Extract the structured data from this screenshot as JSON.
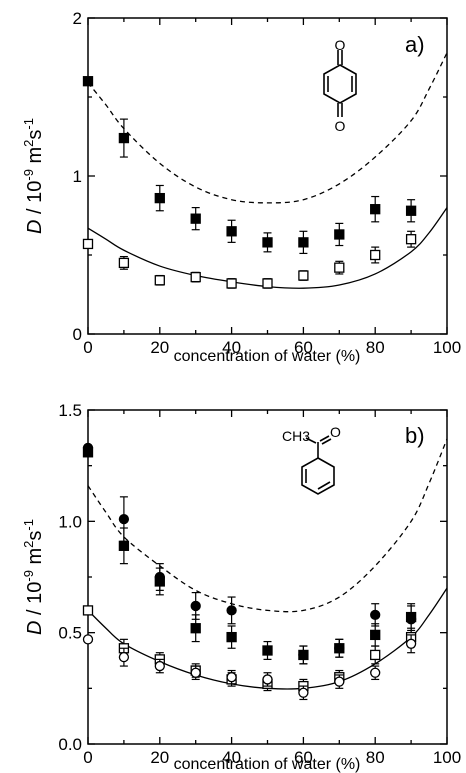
{
  "chart_data": [
    {
      "type": "scatter",
      "panel_label": "a)",
      "molecule_labels": [
        "O",
        "O"
      ],
      "xlabel": "concentration of water (%)",
      "ylabel": "D / 10-9 m2s-1",
      "ylabel_parts": {
        "d": "D",
        "mid": " / 10",
        "exp1": "-9",
        "unit": " m",
        "exp2": "2",
        "unit2": "s",
        "exp3": "-1"
      },
      "xlim": [
        0,
        100
      ],
      "ylim": [
        0,
        2
      ],
      "xticks": [
        0,
        20,
        40,
        60,
        80,
        100
      ],
      "yticks": [
        0,
        1,
        2
      ],
      "yticklabels": [
        "0",
        "1",
        "2"
      ],
      "series": [
        {
          "marker": "square-filled",
          "x": [
            0,
            10,
            20,
            30,
            40,
            50,
            60,
            70,
            80,
            90
          ],
          "y": [
            1.6,
            1.24,
            0.86,
            0.73,
            0.65,
            0.58,
            0.58,
            0.63,
            0.79,
            0.78
          ],
          "err": [
            0,
            0.12,
            0.08,
            0.07,
            0.07,
            0.06,
            0.07,
            0.07,
            0.08,
            0.07
          ]
        },
        {
          "marker": "square-open",
          "x": [
            0,
            10,
            20,
            30,
            40,
            50,
            60,
            70,
            80,
            90
          ],
          "y": [
            0.57,
            0.45,
            0.34,
            0.36,
            0.32,
            0.32,
            0.37,
            0.42,
            0.5,
            0.6
          ],
          "err": [
            0,
            0.04,
            0.03,
            0.03,
            0.03,
            0.03,
            0.03,
            0.04,
            0.05,
            0.05
          ]
        }
      ],
      "curves": [
        {
          "style": "dashed",
          "x": [
            0,
            5,
            10,
            20,
            30,
            40,
            50,
            60,
            70,
            80,
            90,
            95,
            100
          ],
          "y": [
            1.59,
            1.45,
            1.3,
            1.08,
            0.93,
            0.85,
            0.83,
            0.85,
            0.95,
            1.12,
            1.35,
            1.55,
            1.78
          ]
        },
        {
          "style": "solid",
          "x": [
            0,
            5,
            10,
            20,
            30,
            40,
            50,
            60,
            70,
            80,
            90,
            95,
            100
          ],
          "y": [
            0.67,
            0.6,
            0.53,
            0.43,
            0.37,
            0.33,
            0.3,
            0.29,
            0.31,
            0.38,
            0.52,
            0.64,
            0.8
          ]
        }
      ]
    },
    {
      "type": "scatter",
      "panel_label": "b)",
      "molecule_labels": [
        "CH3",
        "O"
      ],
      "xlabel": "concentration of water (%)",
      "ylabel": "D / 10-9 m2s-1",
      "ylabel_parts": {
        "d": "D",
        "mid": " / 10",
        "exp1": "-9",
        "unit": " m",
        "exp2": "2",
        "unit2": "s",
        "exp3": "-1"
      },
      "xlim": [
        0,
        100
      ],
      "ylim": [
        0,
        1.5
      ],
      "xticks": [
        0,
        20,
        40,
        60,
        80,
        100
      ],
      "yticks": [
        0,
        0.5,
        1.0,
        1.5
      ],
      "yticklabels": [
        "0.0",
        "0.5",
        "1.0",
        "1.5"
      ],
      "series": [
        {
          "marker": "circle-filled",
          "x": [
            0,
            10,
            20,
            30,
            40,
            60,
            70,
            80,
            90
          ],
          "y": [
            1.33,
            1.01,
            0.75,
            0.62,
            0.6,
            0.4,
            0.43,
            0.58,
            0.56
          ],
          "err": [
            0,
            0.1,
            0.06,
            0.06,
            0.06,
            0.04,
            0.04,
            0.05,
            0.06
          ]
        },
        {
          "marker": "square-filled",
          "x": [
            0,
            10,
            20,
            30,
            40,
            50,
            60,
            70,
            80,
            90
          ],
          "y": [
            1.31,
            0.89,
            0.73,
            0.52,
            0.48,
            0.42,
            0.4,
            0.43,
            0.49,
            0.57
          ],
          "err": [
            0,
            0.08,
            0.06,
            0.06,
            0.05,
            0.04,
            0.04,
            0.04,
            0.05,
            0.06
          ]
        },
        {
          "marker": "square-open",
          "x": [
            0,
            10,
            20,
            30,
            40,
            50,
            60,
            70,
            80,
            90
          ],
          "y": [
            0.6,
            0.43,
            0.38,
            0.33,
            0.29,
            0.27,
            0.26,
            0.3,
            0.4,
            0.48
          ],
          "err": [
            0,
            0.04,
            0.03,
            0.03,
            0.03,
            0.03,
            0.03,
            0.03,
            0.04,
            0.04
          ]
        },
        {
          "marker": "circle-open",
          "x": [
            0,
            10,
            20,
            30,
            40,
            50,
            60,
            70,
            80,
            90
          ],
          "y": [
            0.47,
            0.39,
            0.35,
            0.32,
            0.3,
            0.29,
            0.23,
            0.28,
            0.32,
            0.45
          ],
          "err": [
            0,
            0.04,
            0.03,
            0.03,
            0.03,
            0.03,
            0.03,
            0.03,
            0.03,
            0.04
          ]
        }
      ],
      "curves": [
        {
          "style": "dashed",
          "x": [
            0,
            5,
            10,
            20,
            30,
            40,
            50,
            60,
            70,
            80,
            90,
            95,
            100
          ],
          "y": [
            1.16,
            1.04,
            0.93,
            0.8,
            0.69,
            0.63,
            0.6,
            0.6,
            0.66,
            0.8,
            1.0,
            1.17,
            1.37
          ]
        },
        {
          "style": "solid",
          "x": [
            0,
            5,
            10,
            20,
            30,
            40,
            50,
            60,
            70,
            80,
            90,
            95,
            100
          ],
          "y": [
            0.6,
            0.52,
            0.45,
            0.37,
            0.31,
            0.27,
            0.25,
            0.25,
            0.28,
            0.36,
            0.48,
            0.58,
            0.7
          ]
        }
      ]
    }
  ]
}
